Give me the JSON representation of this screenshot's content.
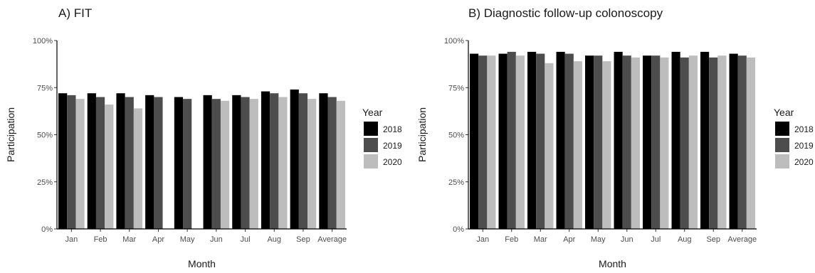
{
  "chart_data": [
    {
      "type": "bar",
      "title": "A) FIT",
      "xlabel": "Month",
      "ylabel": "Participation",
      "ylim": [
        0,
        1
      ],
      "yticks": [
        "0%",
        "25%",
        "50%",
        "75%",
        "100%"
      ],
      "categories": [
        "Jan",
        "Feb",
        "Mar",
        "Apr",
        "May",
        "Jun",
        "Jul",
        "Aug",
        "Sep",
        "Average"
      ],
      "legend_title": "Year",
      "legend_position": "right",
      "grid": false,
      "series": [
        {
          "name": "2018",
          "color": "#000000",
          "values": [
            0.72,
            0.72,
            0.72,
            0.71,
            0.7,
            0.71,
            0.71,
            0.73,
            0.74,
            0.72
          ]
        },
        {
          "name": "2019",
          "color": "#4d4d4d",
          "values": [
            0.71,
            0.7,
            0.7,
            0.7,
            0.69,
            0.69,
            0.7,
            0.72,
            0.72,
            0.7
          ]
        },
        {
          "name": "2020",
          "color": "#bdbdbd",
          "values": [
            0.69,
            0.66,
            0.64,
            null,
            null,
            0.68,
            0.69,
            0.7,
            0.69,
            0.68
          ]
        }
      ]
    },
    {
      "type": "bar",
      "title": "B) Diagnostic follow-up colonoscopy",
      "xlabel": "Month",
      "ylabel": "Participation",
      "ylim": [
        0,
        1
      ],
      "yticks": [
        "0%",
        "25%",
        "50%",
        "75%",
        "100%"
      ],
      "categories": [
        "Jan",
        "Feb",
        "Mar",
        "Apr",
        "May",
        "Jun",
        "Jul",
        "Aug",
        "Sep",
        "Average"
      ],
      "legend_title": "Year",
      "legend_position": "right",
      "grid": false,
      "series": [
        {
          "name": "2018",
          "color": "#000000",
          "values": [
            0.93,
            0.93,
            0.94,
            0.94,
            0.92,
            0.94,
            0.92,
            0.94,
            0.94,
            0.93
          ]
        },
        {
          "name": "2019",
          "color": "#4d4d4d",
          "values": [
            0.92,
            0.94,
            0.93,
            0.93,
            0.92,
            0.92,
            0.92,
            0.91,
            0.91,
            0.92
          ]
        },
        {
          "name": "2020",
          "color": "#bdbdbd",
          "values": [
            0.92,
            0.92,
            0.88,
            0.89,
            0.89,
            0.91,
            0.91,
            0.92,
            0.92,
            0.91
          ]
        }
      ]
    }
  ]
}
